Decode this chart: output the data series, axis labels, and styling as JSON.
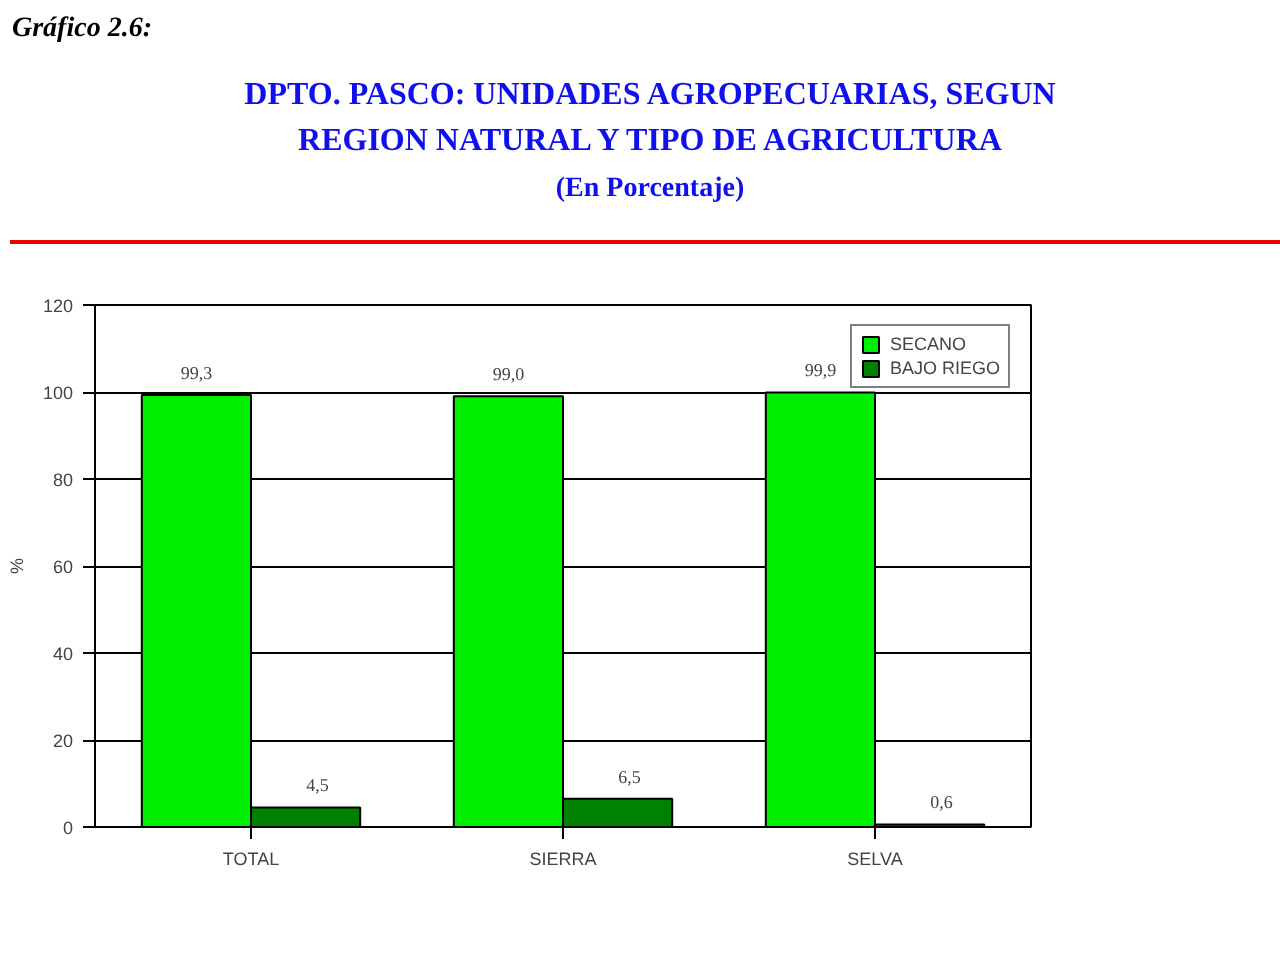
{
  "chart_data": {
    "type": "bar",
    "title": "DPTO. PASCO: UNIDADES AGROPECUARIAS, SEGUN\nREGION NATURAL Y TIPO DE AGRICULTURA",
    "subtitle": "(En Porcentaje)",
    "annotations": [
      "Gráfico 2.6:"
    ],
    "ylabel": "%",
    "categories": [
      "TOTAL",
      "SIERRA",
      "SELVA"
    ],
    "series": [
      {
        "name": "SECANO",
        "color": "#00ee00",
        "values": [
          99.3,
          99.0,
          99.9
        ],
        "value_labels": [
          "99,3",
          "99,0",
          "99,9"
        ]
      },
      {
        "name": "BAJO RIEGO",
        "color": "#008000",
        "values": [
          4.5,
          6.5,
          0.6
        ],
        "value_labels": [
          "4,5",
          "6,5",
          "0,6"
        ]
      }
    ],
    "ylim": [
      0,
      120
    ],
    "yticks": [
      0,
      20,
      40,
      60,
      80,
      100,
      120
    ],
    "grid": "y",
    "legend": "top right"
  }
}
